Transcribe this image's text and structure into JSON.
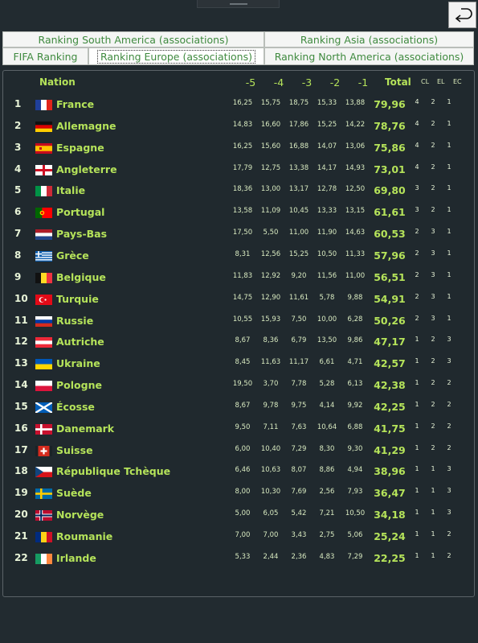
{
  "tabs": {
    "south_america": "Ranking South America (associations)",
    "asia": "Ranking Asia (associations)",
    "fifa": "FIFA Ranking",
    "europe": "Ranking Europe (associations)",
    "north_america": "Ranking North America (associations)"
  },
  "table": {
    "headers": {
      "nation": "Nation",
      "y5": "-5",
      "y4": "-4",
      "y3": "-3",
      "y2": "-2",
      "y1": "-1",
      "total": "Total",
      "cl": "CL",
      "el": "EL",
      "ec": "EC"
    },
    "rows": [
      {
        "rank": "1",
        "nation": "France",
        "flag": "france-flag",
        "s": [
          "16,25",
          "15,75",
          "18,75",
          "15,33",
          "13,88"
        ],
        "total": "79,96",
        "cl": "4",
        "el": "2",
        "ec": "1"
      },
      {
        "rank": "2",
        "nation": "Allemagne",
        "flag": "germany-flag",
        "s": [
          "14,83",
          "16,60",
          "17,86",
          "15,25",
          "14,22"
        ],
        "total": "78,76",
        "cl": "4",
        "el": "2",
        "ec": "1"
      },
      {
        "rank": "3",
        "nation": "Espagne",
        "flag": "spain-flag",
        "s": [
          "16,25",
          "15,60",
          "16,88",
          "14,07",
          "13,06"
        ],
        "total": "75,86",
        "cl": "4",
        "el": "2",
        "ec": "1"
      },
      {
        "rank": "4",
        "nation": "Angleterre",
        "flag": "england-flag",
        "s": [
          "17,79",
          "12,75",
          "13,38",
          "14,17",
          "14,93"
        ],
        "total": "73,01",
        "cl": "4",
        "el": "2",
        "ec": "1"
      },
      {
        "rank": "5",
        "nation": "Italie",
        "flag": "italy-flag",
        "s": [
          "18,36",
          "13,00",
          "13,17",
          "12,78",
          "12,50"
        ],
        "total": "69,80",
        "cl": "3",
        "el": "2",
        "ec": "1"
      },
      {
        "rank": "6",
        "nation": "Portugal",
        "flag": "portugal-flag",
        "s": [
          "13,58",
          "11,09",
          "10,45",
          "13,33",
          "13,15"
        ],
        "total": "61,61",
        "cl": "3",
        "el": "2",
        "ec": "1"
      },
      {
        "rank": "7",
        "nation": "Pays-Bas",
        "flag": "netherlands-flag",
        "s": [
          "17,50",
          "5,50",
          "11,00",
          "11,90",
          "14,63"
        ],
        "total": "60,53",
        "cl": "2",
        "el": "3",
        "ec": "1"
      },
      {
        "rank": "8",
        "nation": "Grèce",
        "flag": "greece-flag",
        "s": [
          "8,31",
          "12,56",
          "15,25",
          "10,50",
          "11,33"
        ],
        "total": "57,96",
        "cl": "2",
        "el": "3",
        "ec": "1"
      },
      {
        "rank": "9",
        "nation": "Belgique",
        "flag": "belgium-flag",
        "s": [
          "11,83",
          "12,92",
          "9,20",
          "11,56",
          "11,00"
        ],
        "total": "56,51",
        "cl": "2",
        "el": "3",
        "ec": "1"
      },
      {
        "rank": "10",
        "nation": "Turquie",
        "flag": "turkey-flag",
        "s": [
          "14,75",
          "12,90",
          "11,61",
          "5,78",
          "9,88"
        ],
        "total": "54,91",
        "cl": "2",
        "el": "3",
        "ec": "1"
      },
      {
        "rank": "11",
        "nation": "Russie",
        "flag": "russia-flag",
        "s": [
          "10,55",
          "15,93",
          "7,50",
          "10,00",
          "6,28"
        ],
        "total": "50,26",
        "cl": "2",
        "el": "3",
        "ec": "1"
      },
      {
        "rank": "12",
        "nation": "Autriche",
        "flag": "austria-flag",
        "s": [
          "8,67",
          "8,36",
          "6,79",
          "13,50",
          "9,86"
        ],
        "total": "47,17",
        "cl": "1",
        "el": "2",
        "ec": "3"
      },
      {
        "rank": "13",
        "nation": "Ukraine",
        "flag": "ukraine-flag",
        "s": [
          "8,45",
          "11,63",
          "11,17",
          "6,61",
          "4,71"
        ],
        "total": "42,57",
        "cl": "1",
        "el": "2",
        "ec": "3"
      },
      {
        "rank": "14",
        "nation": "Pologne",
        "flag": "poland-flag",
        "s": [
          "19,50",
          "3,70",
          "7,78",
          "5,28",
          "6,13"
        ],
        "total": "42,38",
        "cl": "1",
        "el": "2",
        "ec": "2"
      },
      {
        "rank": "15",
        "nation": "Écosse",
        "flag": "scotland-flag",
        "s": [
          "8,67",
          "9,78",
          "9,75",
          "4,14",
          "9,92"
        ],
        "total": "42,25",
        "cl": "1",
        "el": "2",
        "ec": "2"
      },
      {
        "rank": "16",
        "nation": "Danemark",
        "flag": "denmark-flag",
        "s": [
          "9,50",
          "7,11",
          "7,63",
          "10,64",
          "6,88"
        ],
        "total": "41,75",
        "cl": "1",
        "el": "2",
        "ec": "2"
      },
      {
        "rank": "17",
        "nation": "Suisse",
        "flag": "switzerland-flag",
        "s": [
          "6,00",
          "10,40",
          "7,29",
          "8,30",
          "9,30"
        ],
        "total": "41,29",
        "cl": "1",
        "el": "2",
        "ec": "2"
      },
      {
        "rank": "18",
        "nation": "République Tchèque",
        "flag": "czech-flag",
        "s": [
          "6,46",
          "10,63",
          "8,07",
          "8,86",
          "4,94"
        ],
        "total": "38,96",
        "cl": "1",
        "el": "1",
        "ec": "3"
      },
      {
        "rank": "19",
        "nation": "Suède",
        "flag": "sweden-flag",
        "s": [
          "8,00",
          "10,30",
          "7,69",
          "2,56",
          "7,93"
        ],
        "total": "36,47",
        "cl": "1",
        "el": "1",
        "ec": "3"
      },
      {
        "rank": "20",
        "nation": "Norvège",
        "flag": "norway-flag",
        "s": [
          "5,00",
          "6,05",
          "5,42",
          "7,21",
          "10,50"
        ],
        "total": "34,18",
        "cl": "1",
        "el": "1",
        "ec": "3"
      },
      {
        "rank": "21",
        "nation": "Roumanie",
        "flag": "romania-flag",
        "s": [
          "7,00",
          "7,00",
          "3,43",
          "2,75",
          "5,06"
        ],
        "total": "25,24",
        "cl": "1",
        "el": "1",
        "ec": "2"
      },
      {
        "rank": "22",
        "nation": "Irlande",
        "flag": "ireland-flag",
        "s": [
          "5,33",
          "2,44",
          "2,36",
          "4,83",
          "7,29"
        ],
        "total": "22,25",
        "cl": "1",
        "el": "1",
        "ec": "2"
      }
    ]
  }
}
